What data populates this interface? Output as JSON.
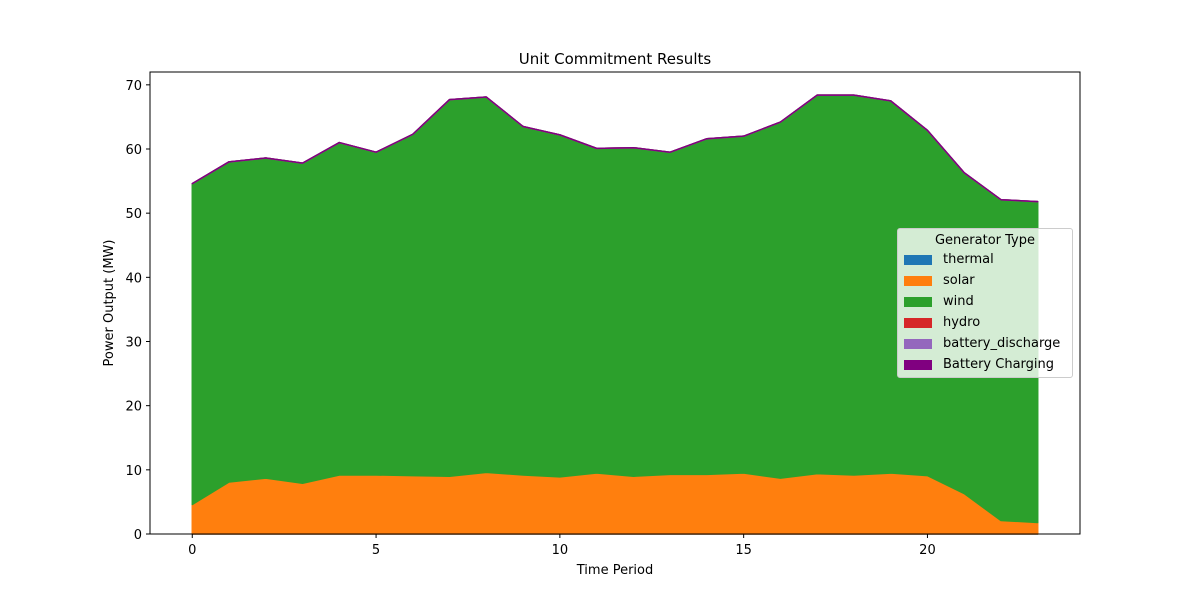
{
  "chart_data": {
    "type": "area",
    "stacked": true,
    "title": "Unit Commitment Results",
    "xlabel": "Time Period",
    "ylabel": "Power Output (MW)",
    "xlim": [
      -1.15,
      24.15
    ],
    "ylim": [
      0,
      72
    ],
    "xticks": [
      0,
      5,
      10,
      15,
      20
    ],
    "yticks": [
      0,
      10,
      20,
      30,
      40,
      50,
      60,
      70
    ],
    "grid": false,
    "legend": {
      "title": "Generator Type",
      "placement": "center-right"
    },
    "x": [
      0,
      1,
      2,
      3,
      4,
      5,
      6,
      7,
      8,
      9,
      10,
      11,
      12,
      13,
      14,
      15,
      16,
      17,
      18,
      19,
      20,
      21,
      22,
      23
    ],
    "series": [
      {
        "name": "thermal",
        "color": "#1f77b4",
        "values": [
          0,
          0,
          0,
          0,
          0,
          0,
          0,
          0,
          0,
          0,
          0,
          0,
          0,
          0,
          0,
          0,
          0,
          0,
          0,
          0,
          0,
          0,
          0,
          0
        ]
      },
      {
        "name": "solar",
        "color": "#ff7f0e",
        "values": [
          4.6,
          8.1,
          8.7,
          7.9,
          9.2,
          9.2,
          9.1,
          9.0,
          9.6,
          9.2,
          8.9,
          9.5,
          9.0,
          9.3,
          9.3,
          9.5,
          8.7,
          9.4,
          9.2,
          9.5,
          9.1,
          6.3,
          2.1,
          1.8
        ]
      },
      {
        "name": "wind",
        "color": "#2ca02c",
        "values": [
          50.0,
          49.9,
          49.9,
          49.9,
          51.8,
          50.3,
          53.2,
          58.7,
          58.5,
          54.3,
          53.3,
          50.6,
          51.2,
          50.2,
          52.3,
          52.5,
          55.5,
          59.0,
          59.2,
          58.0,
          53.8,
          50.0,
          50.0,
          50.0
        ]
      },
      {
        "name": "hydro",
        "color": "#d62728",
        "values": [
          0,
          0,
          0,
          0,
          0,
          0,
          0,
          0,
          0,
          0,
          0,
          0,
          0,
          0,
          0,
          0,
          0,
          0,
          0,
          0,
          0,
          0,
          0,
          0
        ]
      },
      {
        "name": "battery_discharge",
        "color": "#9467bd",
        "values": [
          0,
          0,
          0,
          0,
          0,
          0,
          0,
          0,
          0,
          0,
          0,
          0,
          0,
          0,
          0,
          0,
          0,
          0,
          0,
          0,
          0,
          0,
          0,
          0
        ]
      },
      {
        "name": "Battery Charging",
        "color": "#800080",
        "values": [
          0,
          0,
          0,
          0,
          0,
          0,
          0,
          0,
          0,
          0,
          0,
          0,
          0,
          0,
          0,
          0,
          0,
          0,
          0,
          0,
          0,
          0,
          0,
          0
        ]
      }
    ]
  }
}
